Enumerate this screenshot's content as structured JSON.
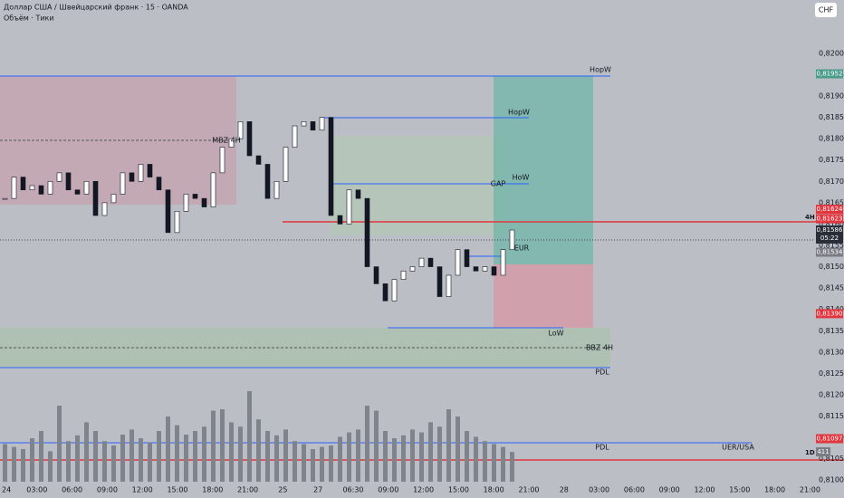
{
  "header": {
    "title": "Доллар США / Швейцарский франк · 15 · OANDA",
    "subtitle": "Объём · Тики",
    "currency": "CHF"
  },
  "chart_data": {
    "type": "candlestick",
    "closes": [
      0.8166,
      0.8171,
      0.8168,
      0.8169,
      0.8167,
      0.817,
      0.8172,
      0.8168,
      0.8167,
      0.817,
      0.8162,
      0.8165,
      0.8167,
      0.8172,
      0.817,
      0.8174,
      0.8171,
      0.8168,
      0.8158,
      0.8163,
      0.8167,
      0.8166,
      0.8164,
      0.8172,
      0.8178,
      0.818,
      0.8184,
      0.8176,
      0.8174,
      0.8166,
      0.817,
      0.8178,
      0.8183,
      0.8184,
      0.8182,
      0.8185,
      0.8162,
      0.816,
      0.8168,
      0.8166,
      0.815,
      0.8146,
      0.8142,
      0.8147,
      0.8149,
      0.815,
      0.8152,
      0.815,
      0.8143,
      0.8148,
      0.8154,
      0.815,
      0.8149,
      0.815,
      0.8148,
      0.8154,
      0.81586
    ],
    "volumes": [
      520,
      480,
      450,
      600,
      700,
      420,
      1050,
      560,
      640,
      820,
      700,
      560,
      500,
      650,
      720,
      600,
      540,
      700,
      900,
      780,
      650,
      700,
      760,
      980,
      1000,
      820,
      760,
      1250,
      860,
      700,
      640,
      720,
      560,
      520,
      450,
      480,
      500,
      620,
      680,
      720,
      1050,
      980,
      700,
      600,
      640,
      720,
      680,
      820,
      760,
      1000,
      900,
      700,
      620,
      560,
      520,
      480,
      411
    ],
    "ylim": [
      0.80958,
      0.82125
    ],
    "yticks": [
      {
        "value": 0.82,
        "label": "0,82000"
      },
      {
        "value": 0.8195,
        "label": "0,81950"
      },
      {
        "value": 0.819,
        "label": "0,81900"
      },
      {
        "value": 0.8185,
        "label": "0,81850"
      },
      {
        "value": 0.818,
        "label": "0,81800"
      },
      {
        "value": 0.8175,
        "label": "0,81750"
      },
      {
        "value": 0.817,
        "label": "0,81700"
      },
      {
        "value": 0.8165,
        "label": "0,81650"
      },
      {
        "value": 0.816,
        "label": "0,81600"
      },
      {
        "value": 0.8155,
        "label": "0,81550"
      },
      {
        "value": 0.815,
        "label": "0,81500"
      },
      {
        "value": 0.8145,
        "label": "0,81450"
      },
      {
        "value": 0.814,
        "label": "0,81400"
      },
      {
        "value": 0.8135,
        "label": "0,81350"
      },
      {
        "value": 0.813,
        "label": "0,81300"
      },
      {
        "value": 0.8125,
        "label": "0,81250"
      },
      {
        "value": 0.812,
        "label": "0,81200"
      },
      {
        "value": 0.8115,
        "label": "0,81150"
      },
      {
        "value": 0.811,
        "label": "0,81100"
      },
      {
        "value": 0.8105,
        "label": "0,81050"
      },
      {
        "value": 0.81,
        "label": "0,81000"
      }
    ],
    "xlabels": [
      "24",
      "03:00",
      "06:00",
      "09:00",
      "12:00",
      "15:00",
      "18:00",
      "21:00",
      "25",
      "27",
      "06:30",
      "09:00",
      "12:00",
      "15:00",
      "18:00",
      "21:00",
      "28",
      "03:00",
      "06:00",
      "09:00",
      "12:00",
      "15:00",
      "18:00",
      "21:00"
    ],
    "badges": [
      {
        "value": 0.81952,
        "label": "0,81952",
        "color": "#4a9d8a"
      },
      {
        "value": 0.81624,
        "label": "0,81624",
        "color": "#e2353d"
      },
      {
        "value": 0.81623,
        "label": "0,81623",
        "color": "#e2353d"
      },
      {
        "value": 0.81586,
        "label": "0,81586",
        "color": "#2a2e39",
        "timer": "05:22"
      },
      {
        "value": 0.81534,
        "label": "0,81534",
        "color": "#7a7d85"
      },
      {
        "value": 0.8139,
        "label": "0,81390",
        "color": "#e2353d"
      },
      {
        "value": 0.81097,
        "label": "0,81097",
        "color": "#e2353d"
      }
    ],
    "volume_badge": "411",
    "timeframes": [
      "4H",
      "1D"
    ],
    "annotations": [
      "HopW",
      "HopW",
      "HoW",
      "GAP",
      "EUR",
      "LoW",
      "BBZ 4H",
      "PDL",
      "PDL",
      "UER/USA",
      "MBZ 4H"
    ]
  }
}
